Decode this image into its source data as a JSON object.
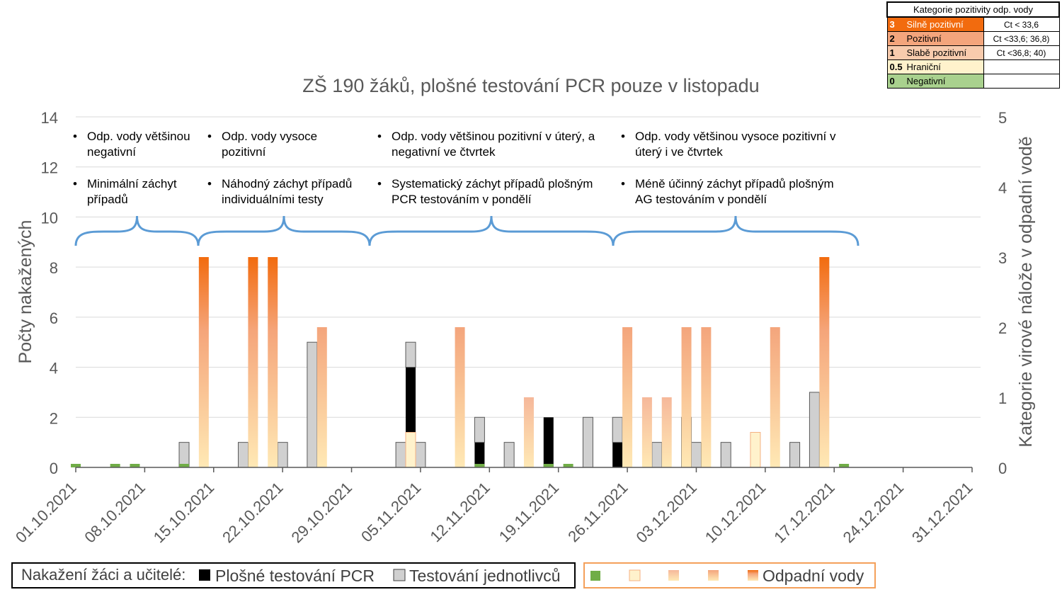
{
  "category_table": {
    "header": "Kategorie pozitivity odp. vody",
    "rows": [
      {
        "level": "3",
        "name": "Silně pozitivní",
        "ct": "Ct < 33,6",
        "color": "#F26B0E"
      },
      {
        "level": "2",
        "name": "Pozitivní",
        "ct": "Ct <33,6; 36,8)",
        "color": "#F4A57C"
      },
      {
        "level": "1",
        "name": "Slabě pozitivní",
        "ct": "Ct <36,8; 40)",
        "color": "#F8CBAD"
      },
      {
        "level": "0.5",
        "name": "Hraniční",
        "ct": "",
        "color": "#FFF2CC"
      },
      {
        "level": "0",
        "name": "Negativní",
        "ct": "",
        "color": "#A9D18E"
      }
    ]
  },
  "annotations": [
    {
      "items": [
        "Odp. vody většinou negativní",
        "Minimální záchyt případů"
      ]
    },
    {
      "items": [
        "Odp. vody vysoce pozitivní",
        "Náhodný záchyt případů individuálními testy"
      ]
    },
    {
      "items": [
        "Odp. vody většinou pozitivní v úterý, a negativní ve čtvrtek",
        "Systematický záchyt případů plošným PCR testováním v pondělí"
      ]
    },
    {
      "items": [
        "Odp. vody většinou vysoce pozitivní v úterý i ve čtvrtek",
        "Méně účinný záchyt případů plošným AG testováním v pondělí"
      ]
    }
  ],
  "legend": {
    "infected_label": "Nakažení žáci a učitelé:",
    "pcr_label": "Plošné testování PCR",
    "individual_label": "Testování jednotlivců",
    "wastewater_label": "Odpadní vody"
  },
  "colors": {
    "pcr": "#000000",
    "individual": "#D0D0D0",
    "negative": "#70AD47",
    "borderline": "#FFF2CC",
    "brace": "#5B9BD5",
    "legend_box_orange": "#F4A05A"
  },
  "chart_data": {
    "type": "bar",
    "title": "ZŠ 190 žáků, plošné testování PCR pouze v listopadu",
    "ylabel": "Počty nakažených",
    "y2label": "Kategorie virové nálože v odpadní vodě",
    "ylim": [
      0,
      14
    ],
    "y2lim": [
      0,
      5
    ],
    "yticks": [
      "0",
      "2",
      "4",
      "6",
      "8",
      "10",
      "12",
      "14"
    ],
    "y2ticks": [
      "0",
      "1",
      "2",
      "3",
      "4",
      "5"
    ],
    "xticks": [
      "01.10.2021",
      "08.10.2021",
      "15.10.2021",
      "22.10.2021",
      "29.10.2021",
      "05.11.2021",
      "12.11.2021",
      "19.11.2021",
      "26.11.2021",
      "03.12.2021",
      "10.12.2021",
      "17.12.2021",
      "24.12.2021",
      "31.12.2021"
    ],
    "grid": true,
    "cases_series": [
      {
        "name": "Plošné testování PCR",
        "points": [
          {
            "date": "2021-11-04",
            "value": 4
          },
          {
            "date": "2021-11-11",
            "value": 1
          },
          {
            "date": "2021-11-18",
            "value": 2
          },
          {
            "date": "2021-11-25",
            "value": 1
          }
        ]
      },
      {
        "name": "Testování jednotlivců",
        "points": [
          {
            "date": "2021-10-12",
            "value": 1
          },
          {
            "date": "2021-10-18",
            "value": 1
          },
          {
            "date": "2021-10-22",
            "value": 1
          },
          {
            "date": "2021-10-25",
            "value": 5
          },
          {
            "date": "2021-11-03",
            "value": 1
          },
          {
            "date": "2021-11-04",
            "value": 1
          },
          {
            "date": "2021-11-05",
            "value": 1
          },
          {
            "date": "2021-11-11",
            "value": 1
          },
          {
            "date": "2021-11-14",
            "value": 1
          },
          {
            "date": "2021-11-22",
            "value": 2
          },
          {
            "date": "2021-11-25",
            "value": 1
          },
          {
            "date": "2021-11-29",
            "value": 1
          },
          {
            "date": "2021-12-02",
            "value": 2
          },
          {
            "date": "2021-12-03",
            "value": 1
          },
          {
            "date": "2021-12-06",
            "value": 1
          },
          {
            "date": "2021-12-13",
            "value": 1
          },
          {
            "date": "2021-12-15",
            "value": 3
          }
        ]
      }
    ],
    "wastewater_series": {
      "name": "Odpadní vody",
      "points": [
        {
          "date": "2021-10-01",
          "category": 0
        },
        {
          "date": "2021-10-05",
          "category": 0
        },
        {
          "date": "2021-10-07",
          "category": 0
        },
        {
          "date": "2021-10-12",
          "category": 0
        },
        {
          "date": "2021-10-14",
          "category": 3
        },
        {
          "date": "2021-10-19",
          "category": 3
        },
        {
          "date": "2021-10-21",
          "category": 3
        },
        {
          "date": "2021-10-26",
          "category": 2
        },
        {
          "date": "2021-11-04",
          "category": 0.5
        },
        {
          "date": "2021-11-09",
          "category": 2
        },
        {
          "date": "2021-11-16",
          "category": 1
        },
        {
          "date": "2021-11-11",
          "category": 0
        },
        {
          "date": "2021-11-18",
          "category": 0
        },
        {
          "date": "2021-11-20",
          "category": 0
        },
        {
          "date": "2021-11-26",
          "category": 2
        },
        {
          "date": "2021-11-28",
          "category": 1
        },
        {
          "date": "2021-11-30",
          "category": 1
        },
        {
          "date": "2021-12-02",
          "category": 2
        },
        {
          "date": "2021-12-04",
          "category": 2
        },
        {
          "date": "2021-12-09",
          "category": 0.5
        },
        {
          "date": "2021-12-11",
          "category": 2
        },
        {
          "date": "2021-12-16",
          "category": 3
        },
        {
          "date": "2021-12-18",
          "category": 0
        }
      ]
    }
  }
}
